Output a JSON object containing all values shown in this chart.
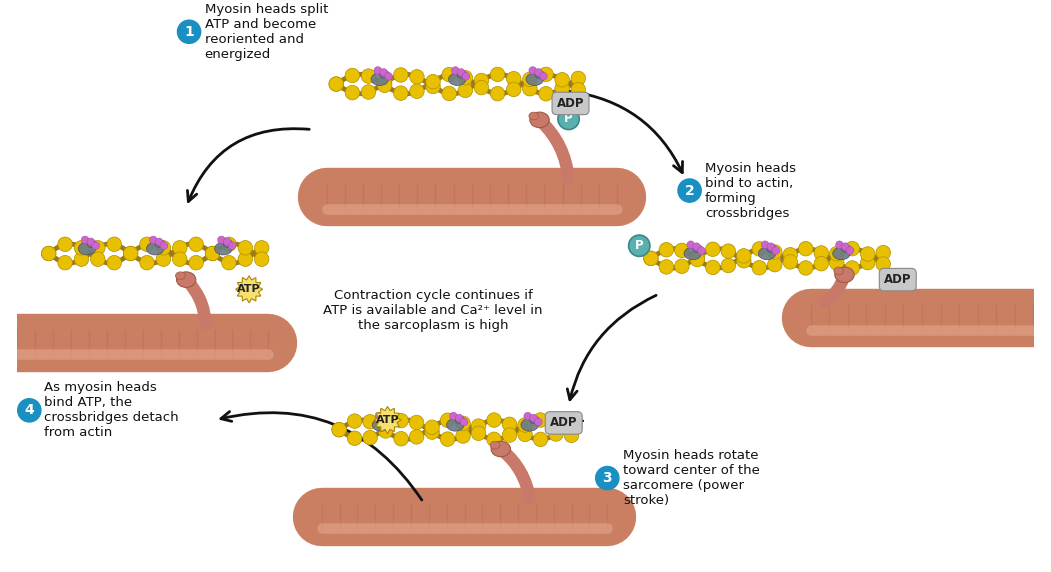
{
  "background_color": "#ffffff",
  "step1_label": "Myosin heads split\nATP and become\nreoriented and\nenergized",
  "step2_label": "Myosin heads\nbind to actin,\nforming\ncrossbridges",
  "step3_label": "Myosin heads rotate\ntoward center of the\nsarcomere (power\nstroke)",
  "step4_label": "As myosin heads\nbind ATP, the\ncrossbridges detach\nfrom actin",
  "center_label": "Contraction cycle continues if\nATP is available and Ca²⁺ level in\nthe sarcoplasm is high",
  "actin_bead_color": "#e8c000",
  "actin_backbone_color": "#9B7820",
  "troponin_color": "#6a7a8a",
  "tropomyosin_color": "#cc66cc",
  "myosin_rod_color": "#d4896a",
  "myosin_rod_dark": "#b86a50",
  "myosin_rod_light": "#e8aa90",
  "myosin_head_color": "#c8796a",
  "step_circle_color": "#1a8fc1",
  "atp_bg": "#f5e070",
  "adp_bg": "#c8c8c8",
  "p_bg": "#5ab0b0",
  "arrow_color": "#111111",
  "text_color": "#111111"
}
